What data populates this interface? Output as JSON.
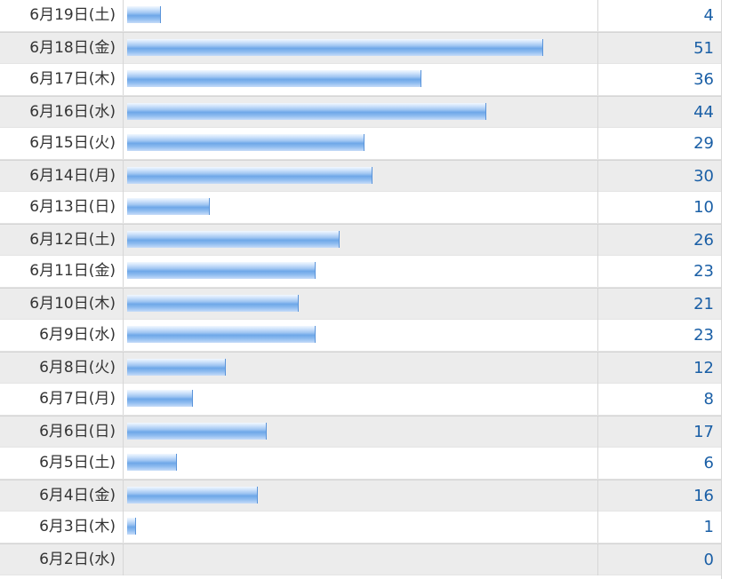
{
  "chart_data": {
    "type": "bar",
    "orientation": "horizontal",
    "categories": [
      "6月19日(土)",
      "6月18日(金)",
      "6月17日(木)",
      "6月16日(水)",
      "6月15日(火)",
      "6月14日(月)",
      "6月13日(日)",
      "6月12日(土)",
      "6月11日(金)",
      "6月10日(木)",
      "6月9日(水)",
      "6月8日(火)",
      "6月7日(月)",
      "6月6日(日)",
      "6月5日(土)",
      "6月4日(金)",
      "6月3日(木)",
      "6月2日(水)"
    ],
    "values": [
      4,
      51,
      36,
      44,
      29,
      30,
      10,
      26,
      23,
      21,
      23,
      12,
      8,
      17,
      6,
      16,
      1,
      0
    ],
    "bar_color": "#6ea7e8",
    "value_color": "#1a5fa6",
    "xlim": [
      0,
      58
    ]
  }
}
